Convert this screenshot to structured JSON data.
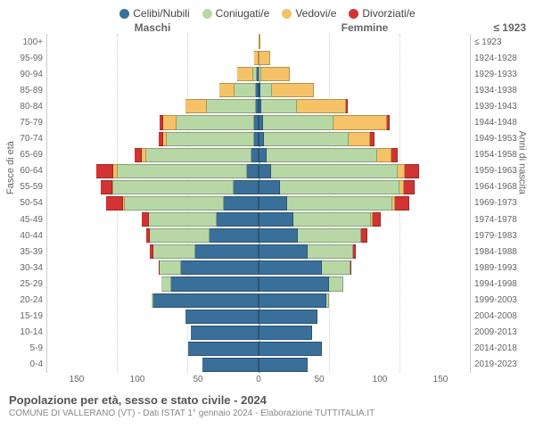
{
  "legend": [
    {
      "label": "Celibi/Nubili",
      "color": "#3a6f9a"
    },
    {
      "label": "Coniugati/e",
      "color": "#b7d8a5"
    },
    {
      "label": "Vedovi/e",
      "color": "#f5c267"
    },
    {
      "label": "Divorziati/e",
      "color": "#d23333"
    }
  ],
  "headers": {
    "male": "Maschi",
    "female": "Femmine",
    "birth_tr": "≤ 1923"
  },
  "axis_titles": {
    "left": "Fasce di età",
    "right": "Anni di nascita"
  },
  "xaxis": {
    "max": 150,
    "ticks": [
      "150",
      "100",
      "50",
      "0",
      "50",
      "100",
      "150"
    ]
  },
  "age_labels": [
    "100+",
    "95-99",
    "90-94",
    "85-89",
    "80-84",
    "75-79",
    "70-74",
    "65-69",
    "60-64",
    "55-59",
    "50-54",
    "45-49",
    "40-44",
    "35-39",
    "30-34",
    "25-29",
    "20-24",
    "15-19",
    "10-14",
    "5-9",
    "0-4"
  ],
  "birth_labels": [
    "≤ 1923",
    "1924-1928",
    "1929-1933",
    "1934-1938",
    "1939-1943",
    "1944-1948",
    "1949-1953",
    "1954-1958",
    "1959-1963",
    "1964-1968",
    "1969-1973",
    "1974-1978",
    "1979-1983",
    "1984-1988",
    "1989-1993",
    "1994-1998",
    "1999-2003",
    "2004-2008",
    "2009-2013",
    "2014-2018",
    "2019-2023"
  ],
  "colors": {
    "single": "#3a6f9a",
    "married": "#b7d8a5",
    "widowed": "#f5c267",
    "divorced": "#d23333",
    "grid": "#cccccc",
    "center": "#8fb3b3",
    "bg": "#ffffff",
    "text": "#666666"
  },
  "male": [
    {
      "s": 0,
      "m": 0,
      "w": 0,
      "d": 0
    },
    {
      "s": 0,
      "m": 0,
      "w": 3,
      "d": 0
    },
    {
      "s": 1,
      "m": 3,
      "w": 11,
      "d": 0
    },
    {
      "s": 2,
      "m": 15,
      "w": 11,
      "d": 0
    },
    {
      "s": 2,
      "m": 35,
      "w": 15,
      "d": 0
    },
    {
      "s": 3,
      "m": 55,
      "w": 10,
      "d": 2
    },
    {
      "s": 3,
      "m": 62,
      "w": 3,
      "d": 3
    },
    {
      "s": 5,
      "m": 75,
      "w": 3,
      "d": 5
    },
    {
      "s": 8,
      "m": 92,
      "w": 3,
      "d": 12
    },
    {
      "s": 18,
      "m": 85,
      "w": 1,
      "d": 8
    },
    {
      "s": 25,
      "m": 70,
      "w": 1,
      "d": 12
    },
    {
      "s": 30,
      "m": 48,
      "w": 0,
      "d": 5
    },
    {
      "s": 35,
      "m": 42,
      "w": 0,
      "d": 3
    },
    {
      "s": 45,
      "m": 30,
      "w": 0,
      "d": 2
    },
    {
      "s": 55,
      "m": 15,
      "w": 0,
      "d": 1
    },
    {
      "s": 62,
      "m": 7,
      "w": 0,
      "d": 0
    },
    {
      "s": 75,
      "m": 1,
      "w": 0,
      "d": 0
    },
    {
      "s": 52,
      "m": 0,
      "w": 0,
      "d": 0
    },
    {
      "s": 48,
      "m": 0,
      "w": 0,
      "d": 0
    },
    {
      "s": 50,
      "m": 0,
      "w": 0,
      "d": 0
    },
    {
      "s": 40,
      "m": 0,
      "w": 0,
      "d": 0
    }
  ],
  "female": [
    {
      "s": 0,
      "m": 0,
      "w": 1,
      "d": 0
    },
    {
      "s": 0,
      "m": 0,
      "w": 8,
      "d": 0
    },
    {
      "s": 0,
      "m": 2,
      "w": 20,
      "d": 0
    },
    {
      "s": 1,
      "m": 8,
      "w": 30,
      "d": 0
    },
    {
      "s": 2,
      "m": 25,
      "w": 35,
      "d": 1
    },
    {
      "s": 3,
      "m": 50,
      "w": 38,
      "d": 2
    },
    {
      "s": 4,
      "m": 60,
      "w": 15,
      "d": 3
    },
    {
      "s": 6,
      "m": 78,
      "w": 10,
      "d": 5
    },
    {
      "s": 9,
      "m": 90,
      "w": 5,
      "d": 10
    },
    {
      "s": 15,
      "m": 85,
      "w": 3,
      "d": 8
    },
    {
      "s": 20,
      "m": 75,
      "w": 2,
      "d": 10
    },
    {
      "s": 25,
      "m": 55,
      "w": 1,
      "d": 6
    },
    {
      "s": 28,
      "m": 45,
      "w": 0,
      "d": 4
    },
    {
      "s": 35,
      "m": 32,
      "w": 0,
      "d": 2
    },
    {
      "s": 45,
      "m": 20,
      "w": 0,
      "d": 1
    },
    {
      "s": 50,
      "m": 10,
      "w": 0,
      "d": 0
    },
    {
      "s": 48,
      "m": 2,
      "w": 0,
      "d": 0
    },
    {
      "s": 42,
      "m": 0,
      "w": 0,
      "d": 0
    },
    {
      "s": 38,
      "m": 0,
      "w": 0,
      "d": 0
    },
    {
      "s": 45,
      "m": 0,
      "w": 0,
      "d": 0
    },
    {
      "s": 35,
      "m": 0,
      "w": 0,
      "d": 0
    }
  ],
  "footer": {
    "title": "Popolazione per età, sesso e stato civile - 2024",
    "subtitle": "COMUNE DI VALLERANO (VT) - Dati ISTAT 1° gennaio 2024 - Elaborazione TUTTITALIA.IT"
  }
}
